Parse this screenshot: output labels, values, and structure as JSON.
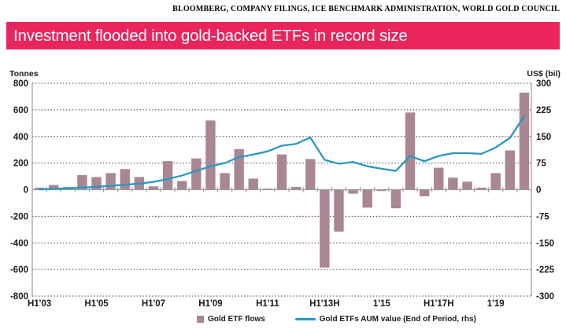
{
  "sources": "BLOOMBERG, COMPANY FILINGS, ICE BENCHMARK ADMINISTRATION, WORLD GOLD COUNCIL",
  "title": "Investment flooded into gold-backed ETFs in record size",
  "colors": {
    "title_bg": "#e9255c",
    "title_text": "#ffffff",
    "bar": "#a88692",
    "line": "#2798c2",
    "grid": "#3c3c3c",
    "axis": "#9b9b9b",
    "text": "#1b1b1b"
  },
  "chart_data": {
    "type": "bar+line",
    "grid": "dotted horizontal gridlines, solid gray zero line and side axes",
    "left_axis": {
      "label": "Tonnes",
      "range": [
        -800,
        800
      ],
      "ticks": [
        800,
        600,
        400,
        200,
        0,
        -200,
        -400,
        -600,
        -800
      ]
    },
    "right_axis": {
      "label": "US$ (bil)",
      "range": [
        -300,
        300
      ],
      "ticks": [
        300,
        225,
        150,
        75,
        0,
        -75,
        -150,
        -225,
        -300
      ]
    },
    "x_tick_labels": [
      {
        "label": "H1'03",
        "slot": 0
      },
      {
        "label": "H1'05",
        "slot": 4
      },
      {
        "label": "H1'07",
        "slot": 8
      },
      {
        "label": "H1'09",
        "slot": 12
      },
      {
        "label": "H1'11",
        "slot": 16
      },
      {
        "label": "H1'13H",
        "slot": 20
      },
      {
        "label": "1'15",
        "slot": 24
      },
      {
        "label": "H1'17H",
        "slot": 28
      },
      {
        "label": "1'19",
        "slot": 32
      }
    ],
    "periods": [
      "H1'03",
      "H2'03",
      "H1'04",
      "H2'04",
      "H1'05",
      "H2'05",
      "H1'06",
      "H2'06",
      "H1'07",
      "H2'07",
      "H1'08",
      "H2'08",
      "H1'09",
      "H2'09",
      "H1'10",
      "H2'10",
      "H1'11",
      "H2'11",
      "H1'12",
      "H2'12",
      "H1'13",
      "H2'13",
      "H1'14",
      "H2'14",
      "H1'15",
      "H2'15",
      "H1'16",
      "H2'16",
      "H1'17",
      "H2'17",
      "H1'18",
      "H2'18",
      "H1'19",
      "H2'19",
      "H1'20"
    ],
    "series": [
      {
        "name": "Gold ETF flows",
        "type": "bar",
        "axis": "left",
        "values": [
          15,
          35,
          20,
          110,
          95,
          125,
          155,
          95,
          25,
          215,
          65,
          235,
          520,
          125,
          305,
          83,
          8,
          265,
          20,
          230,
          -585,
          -315,
          -30,
          -135,
          -10,
          -140,
          580,
          -50,
          165,
          90,
          60,
          15,
          125,
          295,
          730
        ]
      },
      {
        "name": "Gold ETFs AUM value (End of Period, rhs)",
        "type": "line",
        "axis": "right",
        "values": [
          1,
          2,
          4,
          6,
          8,
          11,
          14,
          17,
          22,
          30,
          40,
          53,
          66,
          75,
          92,
          99,
          108,
          124,
          129,
          147,
          84,
          73,
          78,
          66,
          59,
          53,
          95,
          80,
          95,
          103,
          103,
          101,
          119,
          146,
          207
        ]
      }
    ]
  },
  "legend": {
    "items": [
      {
        "label": "Gold ETF flows",
        "swatch": "bar"
      },
      {
        "label": "Gold ETFs AUM value (End of Period, rhs)",
        "swatch": "line"
      }
    ]
  }
}
